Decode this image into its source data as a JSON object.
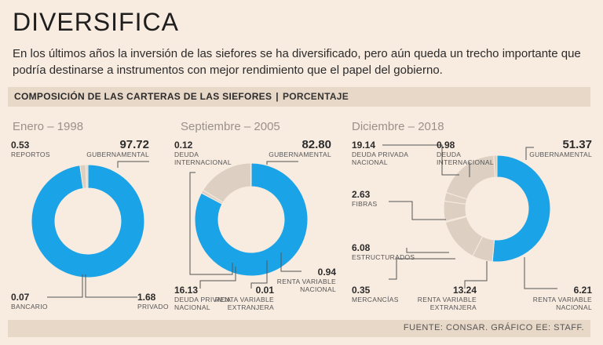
{
  "title": "DIVERSIFICA",
  "subtitle": "En los últimos años la inversión de las siefores se ha diversificado, pero aún queda un trecho importante que podría destinarse a instrumentos con mejor rendimiento que el papel del gobierno.",
  "section": {
    "title": "COMPOSICIÓN DE LAS CARTERAS DE LAS SIEFORES",
    "separator": "|",
    "unit": "PORCENTAJE"
  },
  "footer": "FUENTE: CONSAR. GRÁFICO EE: STAFF.",
  "colors": {
    "gubernamental": "#1aa3e6",
    "other": "#ddd0c2",
    "divider": "#f8ebe0",
    "text": "#2b2b2b",
    "line": "#555555"
  },
  "chart_data": [
    {
      "type": "pie",
      "title": "Enero – 1998",
      "series": [
        {
          "value": "97.72",
          "label": [
            "GUBERNAMENTAL"
          ]
        },
        {
          "value": "1.68",
          "label": [
            "PRIVADO"
          ]
        },
        {
          "value": "0.07",
          "label": [
            "BANCARIO"
          ]
        },
        {
          "value": "0.53",
          "label": [
            "REPORTOS"
          ]
        }
      ]
    },
    {
      "type": "pie",
      "title": "Septiembre – 2005",
      "series": [
        {
          "value": "82.80",
          "label": [
            "GUBERNAMENTAL"
          ]
        },
        {
          "value": "0.94",
          "label": [
            "RENTA VARIABLE",
            "NACIONAL"
          ]
        },
        {
          "value": "0.01",
          "label": [
            "RENTA VARIABLE",
            "EXTRANJERA"
          ]
        },
        {
          "value": "16.13",
          "label": [
            "DEUDA PRIVADA",
            "NACIONAL"
          ]
        },
        {
          "value": "0.12",
          "label": [
            "DEUDA",
            "INTERNACIONAL"
          ]
        }
      ]
    },
    {
      "type": "pie",
      "title": "Diciembre – 2018",
      "series": [
        {
          "value": "51.37",
          "label": [
            "GUBERNAMENTAL"
          ]
        },
        {
          "value": "6.21",
          "label": [
            "RENTA VARIABLE",
            "NACIONAL"
          ]
        },
        {
          "value": "13.24",
          "label": [
            "RENTA VARIABLE",
            "EXTRANJERA"
          ]
        },
        {
          "value": "0.35",
          "label": [
            "MERCANCÍAS"
          ]
        },
        {
          "value": "6.08",
          "label": [
            "ESTRUCTURADOS"
          ]
        },
        {
          "value": "2.63",
          "label": [
            "FIBRAS"
          ]
        },
        {
          "value": "19.14",
          "label": [
            "DEUDA PRIVADA",
            "NACIONAL"
          ]
        },
        {
          "value": "0.98",
          "label": [
            "DEUDA",
            "INTERNACIONAL"
          ]
        }
      ]
    }
  ]
}
